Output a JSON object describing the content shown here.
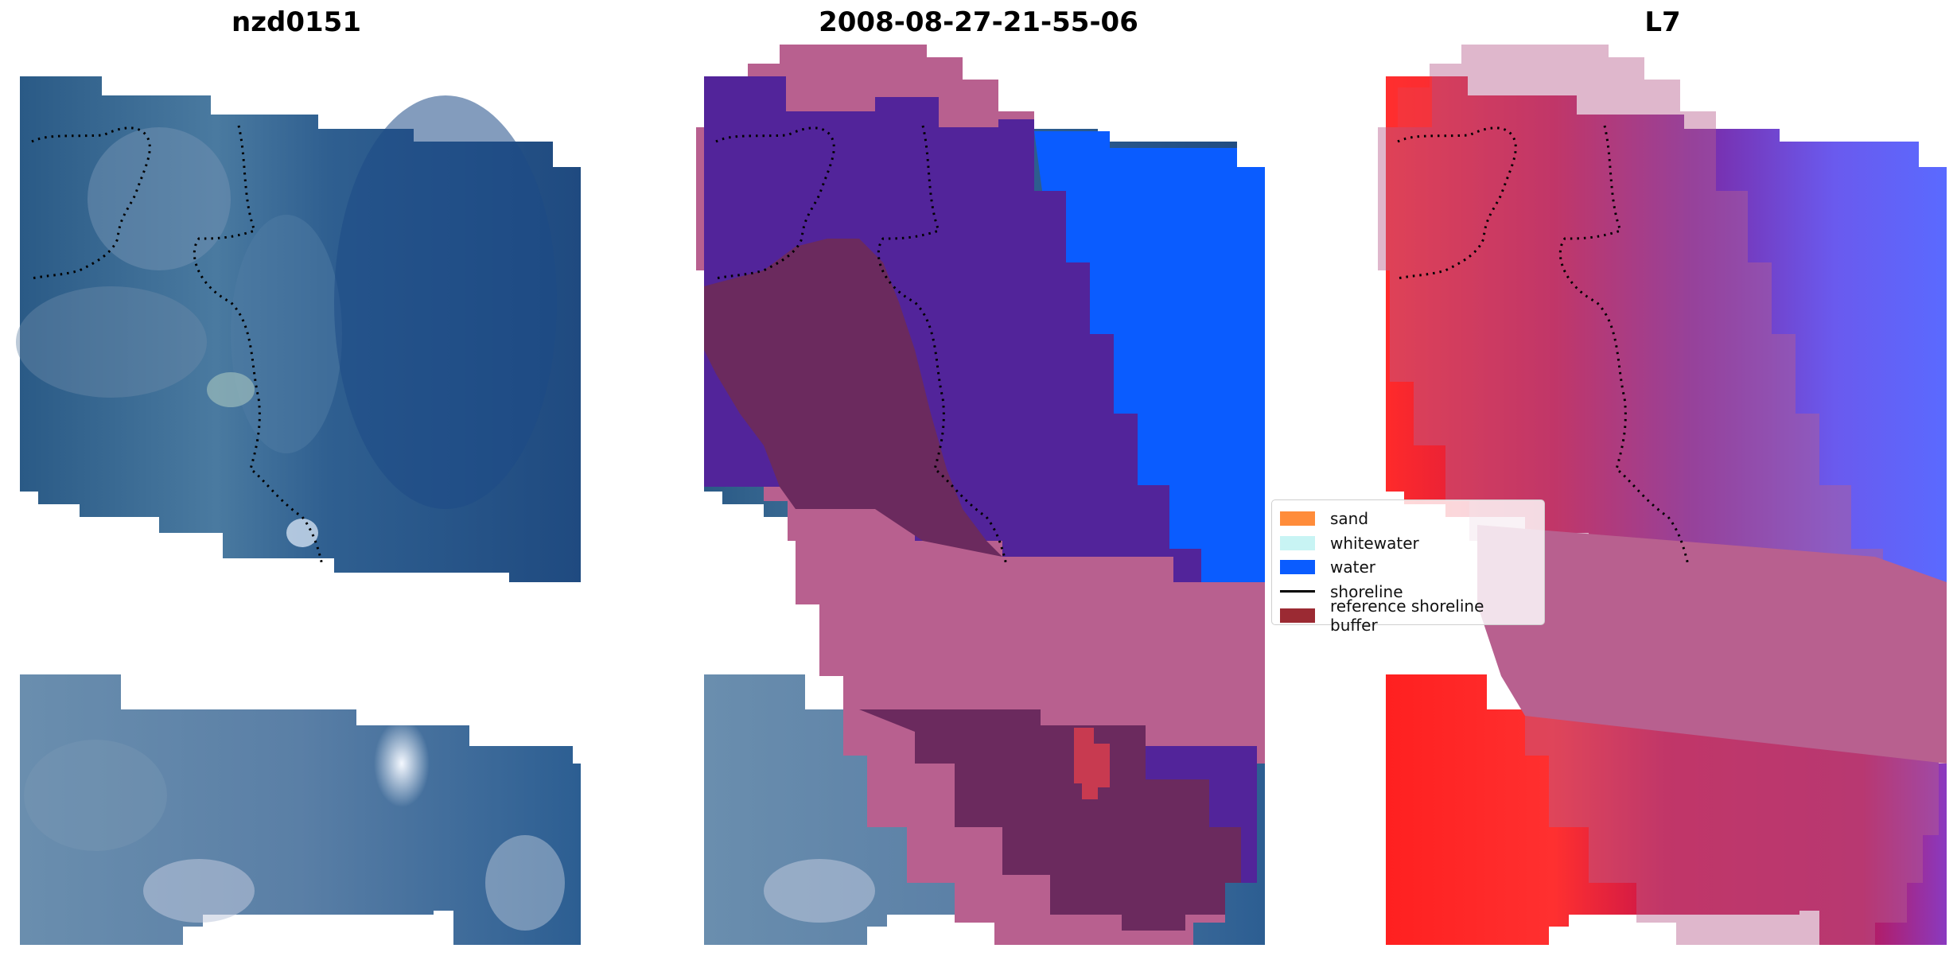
{
  "titles": {
    "panel_1": "nzd0151",
    "panel_2": "2008-08-27-21-55-06",
    "panel_3": "L7"
  },
  "legend": {
    "items": [
      {
        "label": "sand",
        "color": "#ff8c3a",
        "kind": "patch"
      },
      {
        "label": "whitewater",
        "color": "#c8f4f4",
        "kind": "patch"
      },
      {
        "label": "water",
        "color": "#0a5cff",
        "kind": "patch"
      },
      {
        "label": "shoreline",
        "color": "#000000",
        "kind": "line"
      },
      {
        "label": "reference shoreline buffer",
        "color": "#9b2a33",
        "kind": "patch"
      }
    ]
  },
  "colors": {
    "rgb_dark": "#1f4a7e",
    "rgb_mid": "#3a6a9a",
    "rgb_light": "#8aa7c4",
    "buffer": "#b8608f",
    "water_class": "#0a5cff",
    "land_red": "#ff2424",
    "overlay_purple": "#52249a",
    "overlay_maroon": "#6b2a5e"
  }
}
